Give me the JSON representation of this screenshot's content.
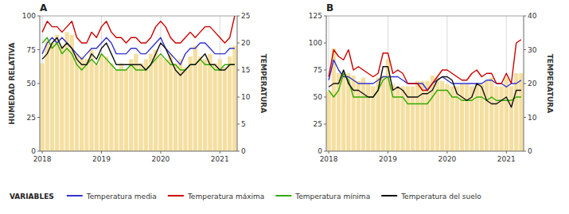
{
  "chart_data": [
    {
      "type": "bar",
      "title": "A",
      "y_label": "HUMEDAD RELATIVA",
      "y2_label": "TEMPERATURA",
      "categories": [
        "2018",
        null,
        null,
        null,
        null,
        null,
        null,
        null,
        null,
        null,
        null,
        null,
        "2019",
        null,
        null,
        null,
        null,
        null,
        null,
        null,
        null,
        null,
        null,
        null,
        "2020",
        null,
        null,
        null,
        null,
        null,
        null,
        null,
        null,
        null,
        null,
        null,
        "2021",
        null,
        null,
        null
      ],
      "ylim": [
        0,
        100
      ],
      "yticks": [
        0,
        25,
        50,
        75,
        100
      ],
      "y2lim": [
        0,
        25
      ],
      "y2ticks": [
        0,
        5,
        10,
        15,
        20,
        25
      ],
      "grid": true,
      "annotations": [
        "VARIABLES"
      ],
      "series": [
        {
          "type": "bar",
          "color": "#f5dfa0",
          "values": [
            65,
            82,
            80,
            86,
            78,
            88,
            86,
            72,
            70,
            68,
            75,
            64,
            72,
            70,
            65,
            60,
            65,
            60,
            68,
            72,
            65,
            68,
            72,
            75,
            70,
            68,
            72,
            65,
            68,
            62,
            70,
            78,
            70,
            68,
            72,
            65,
            68,
            62,
            70,
            78
          ]
        },
        {
          "name": "Temperatura media",
          "type": "line",
          "axis": "y2",
          "color": "#3333cc",
          "values": [
            18,
            20,
            21,
            20,
            21,
            20,
            19,
            18,
            17,
            18,
            19,
            19,
            20,
            21,
            20,
            18,
            18,
            18,
            19,
            19,
            18,
            18,
            19,
            20,
            21,
            19,
            18,
            17,
            16,
            18,
            19,
            19,
            20,
            20,
            19,
            18,
            18,
            18,
            19,
            19
          ]
        },
        {
          "name": "Temperatura máxima",
          "type": "line",
          "axis": "y2",
          "color": "#cc0000",
          "values": [
            22,
            24,
            23,
            23,
            22,
            23,
            24,
            21,
            20,
            20,
            22,
            21,
            23,
            24,
            22,
            21,
            21,
            20,
            21,
            21,
            20,
            20,
            21,
            23,
            24,
            23,
            21,
            20,
            20,
            21,
            22,
            21,
            22,
            23,
            23,
            22,
            21,
            20,
            21,
            25
          ]
        },
        {
          "name": "Temperatura mínima",
          "type": "line",
          "axis": "y2",
          "color": "#33aa00",
          "values": [
            20,
            21,
            19,
            20,
            18,
            19,
            18,
            16,
            15,
            16,
            17,
            16,
            18,
            17,
            16,
            15,
            15,
            15,
            16,
            15,
            15,
            15,
            16,
            17,
            18,
            17,
            16,
            16,
            15,
            15,
            16,
            16,
            17,
            16,
            16,
            15,
            15,
            16,
            16,
            16
          ]
        },
        {
          "name": "Temperatura del suelo",
          "type": "line",
          "axis": "y2",
          "color": "#111111",
          "values": [
            17,
            18,
            20,
            21,
            19,
            20,
            19,
            17,
            16,
            16,
            18,
            17,
            19,
            20,
            18,
            16,
            16,
            16,
            16,
            16,
            16,
            15,
            16,
            18,
            20,
            19,
            17,
            15,
            14,
            15,
            16,
            16,
            17,
            18,
            16,
            16,
            15,
            15,
            16,
            16
          ]
        }
      ]
    },
    {
      "type": "bar",
      "title": "B",
      "y2_label": "TEMPERATURA",
      "categories": [
        "2018",
        null,
        null,
        null,
        null,
        null,
        null,
        null,
        null,
        null,
        null,
        null,
        "2019",
        null,
        null,
        null,
        null,
        null,
        null,
        null,
        null,
        null,
        null,
        null,
        "2020",
        null,
        null,
        null,
        null,
        null,
        null,
        null,
        null,
        null,
        null,
        null,
        "2021",
        null,
        null,
        null
      ],
      "ylim": [
        0,
        125
      ],
      "yticks": [
        0,
        25,
        50,
        75,
        100,
        125
      ],
      "y2lim": [
        0,
        40
      ],
      "y2ticks": [
        0,
        10,
        20,
        30,
        40
      ],
      "grid": true,
      "series": [
        {
          "type": "bar",
          "color": "#f5dfa0",
          "values": [
            55,
            95,
            72,
            70,
            72,
            70,
            65,
            68,
            62,
            60,
            68,
            70,
            85,
            62,
            60,
            60,
            60,
            60,
            65,
            65,
            65,
            70,
            68,
            65,
            62,
            60,
            60,
            62,
            62,
            60,
            62,
            62,
            65,
            68,
            60,
            60,
            68,
            60,
            72,
            72
          ]
        },
        {
          "type": "line",
          "axis": "y2",
          "color": "#3333cc",
          "values": [
            21,
            27,
            24,
            22,
            22,
            21,
            20,
            20,
            20,
            20,
            21,
            22,
            22,
            22,
            22,
            21,
            20,
            20,
            20,
            20,
            18,
            20,
            21,
            22,
            21,
            20,
            20,
            20,
            20,
            20,
            20,
            20,
            21,
            21,
            20,
            20,
            19,
            20,
            20,
            21
          ]
        },
        {
          "type": "line",
          "axis": "y2",
          "color": "#cc0000",
          "values": [
            22,
            30,
            28,
            27,
            30,
            24,
            25,
            24,
            23,
            22,
            23,
            29,
            29,
            23,
            24,
            23,
            20,
            20,
            20,
            18,
            18,
            20,
            22,
            24,
            24,
            23,
            22,
            21,
            21,
            23,
            24,
            22,
            23,
            23,
            20,
            20,
            23,
            20,
            32,
            33
          ]
        },
        {
          "type": "line",
          "axis": "y2",
          "color": "#33aa00",
          "values": [
            18,
            16,
            18,
            23,
            21,
            16,
            16,
            16,
            16,
            16,
            18,
            21,
            22,
            16,
            16,
            16,
            14,
            14,
            14,
            14,
            14,
            16,
            18,
            18,
            18,
            16,
            16,
            15,
            15,
            15,
            16,
            16,
            15,
            16,
            15,
            15,
            15,
            15,
            16,
            16
          ]
        },
        {
          "type": "line",
          "axis": "y2",
          "color": "#111111",
          "values": [
            19,
            20,
            20,
            24,
            20,
            18,
            18,
            17,
            16,
            16,
            18,
            25,
            25,
            18,
            19,
            18,
            16,
            16,
            16,
            17,
            17,
            18,
            21,
            22,
            22,
            21,
            17,
            16,
            15,
            16,
            20,
            19,
            15,
            14,
            14,
            15,
            16,
            13,
            18,
            18
          ]
        }
      ]
    }
  ]
}
